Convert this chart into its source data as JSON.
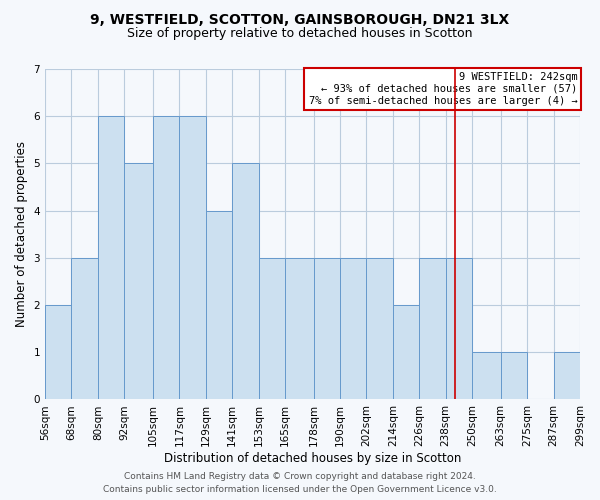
{
  "title1": "9, WESTFIELD, SCOTTON, GAINSBOROUGH, DN21 3LX",
  "title2": "Size of property relative to detached houses in Scotton",
  "xlabel": "Distribution of detached houses by size in Scotton",
  "ylabel": "Number of detached properties",
  "bin_edges": [
    56,
    68,
    80,
    92,
    105,
    117,
    129,
    141,
    153,
    165,
    178,
    190,
    202,
    214,
    226,
    238,
    250,
    263,
    275,
    287,
    299
  ],
  "bar_heights": [
    2,
    3,
    6,
    5,
    6,
    6,
    4,
    5,
    3,
    3,
    3,
    3,
    3,
    2,
    3,
    3,
    1,
    1,
    0,
    1
  ],
  "bar_color": "#cce0f0",
  "bar_edge_color": "#6699cc",
  "bar_edge_width": 0.7,
  "red_line_x": 242,
  "red_line_color": "#cc0000",
  "ylim_max": 7,
  "yticks": [
    0,
    1,
    2,
    3,
    4,
    5,
    6,
    7
  ],
  "grid_color": "#bbccdd",
  "background_color": "#f5f8fc",
  "legend_text_line1": "9 WESTFIELD: 242sqm",
  "legend_text_line2": "← 93% of detached houses are smaller (57)",
  "legend_text_line3": "7% of semi-detached houses are larger (4) →",
  "legend_border_color": "#cc0000",
  "footer_line1": "Contains HM Land Registry data © Crown copyright and database right 2024.",
  "footer_line2": "Contains public sector information licensed under the Open Government Licence v3.0.",
  "title_fontsize": 10,
  "subtitle_fontsize": 9,
  "axis_label_fontsize": 8.5,
  "tick_fontsize": 7.5,
  "footer_fontsize": 6.5,
  "legend_fontsize": 7.5
}
